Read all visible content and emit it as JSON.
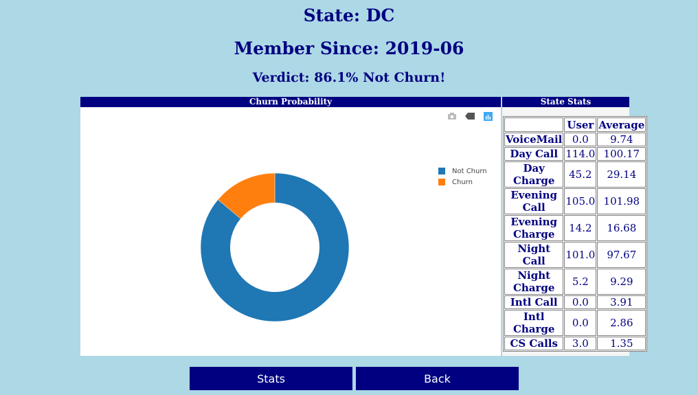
{
  "header": {
    "state": "State: DC",
    "member_since": "Member Since: 2019-06",
    "verdict": "Verdict: 86.1% Not Churn!"
  },
  "chart_panel": {
    "title": "Churn Probability",
    "modebar": [
      "camera-icon",
      "tag-icon",
      "plotly-logo-icon"
    ]
  },
  "chart_data": {
    "type": "pie",
    "hole": 0.6,
    "labels": [
      "Not Churn",
      "Churn"
    ],
    "values": [
      86.1,
      13.9
    ],
    "colors": [
      "#1f77b4",
      "#ff7f0e"
    ],
    "legend_position": "top-right"
  },
  "stats_panel": {
    "title": "State Stats",
    "columns": [
      "",
      "User",
      "Average"
    ],
    "rows": [
      {
        "label": "VoiceMail",
        "user": "0.0",
        "average": "9.74"
      },
      {
        "label": "Day Call",
        "user": "114.0",
        "average": "100.17"
      },
      {
        "label": "Day Charge",
        "user": "45.2",
        "average": "29.14"
      },
      {
        "label": "Evening Call",
        "user": "105.0",
        "average": "101.98"
      },
      {
        "label": "Evening Charge",
        "user": "14.2",
        "average": "16.68"
      },
      {
        "label": "Night Call",
        "user": "101.0",
        "average": "97.67"
      },
      {
        "label": "Night Charge",
        "user": "5.2",
        "average": "9.29"
      },
      {
        "label": "Intl Call",
        "user": "0.0",
        "average": "3.91"
      },
      {
        "label": "Intl Charge",
        "user": "0.0",
        "average": "2.86"
      },
      {
        "label": "CS Calls",
        "user": "3.0",
        "average": "1.35"
      }
    ]
  },
  "buttons": {
    "stats": "Stats",
    "back": "Back"
  }
}
